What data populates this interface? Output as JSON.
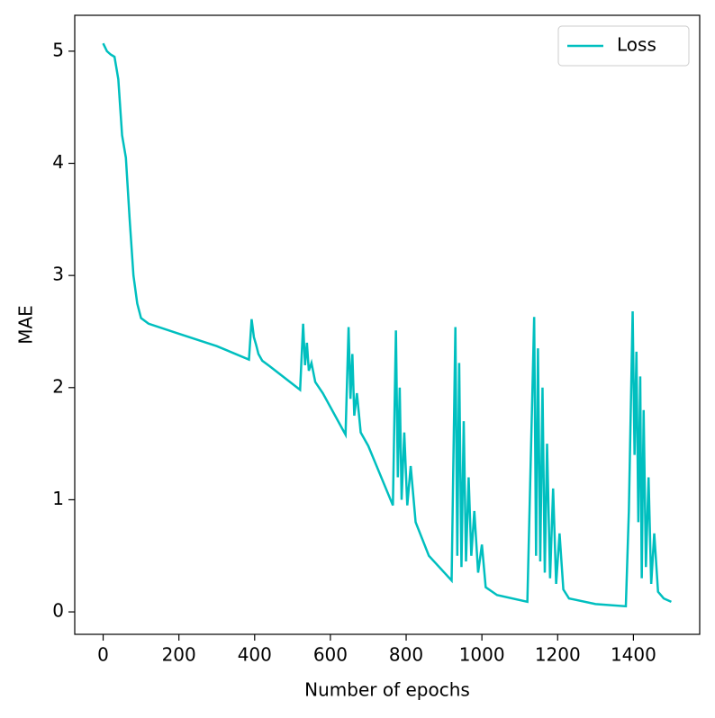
{
  "chart_data": {
    "type": "line",
    "x_label": "Number of epochs",
    "y_label": "MAE",
    "x": [
      0,
      10,
      20,
      30,
      40,
      50,
      60,
      70,
      80,
      90,
      100,
      120,
      200,
      300,
      385,
      392,
      398,
      404,
      410,
      420,
      440,
      520,
      528,
      533,
      538,
      543,
      550,
      560,
      580,
      640,
      648,
      653,
      658,
      663,
      670,
      680,
      700,
      765,
      773,
      778,
      783,
      788,
      795,
      803,
      812,
      825,
      860,
      920,
      930,
      935,
      940,
      946,
      952,
      958,
      965,
      972,
      980,
      990,
      1000,
      1010,
      1040,
      1120,
      1138,
      1143,
      1148,
      1154,
      1160,
      1166,
      1172,
      1180,
      1188,
      1196,
      1205,
      1215,
      1230,
      1300,
      1380,
      1388,
      1398,
      1403,
      1408,
      1413,
      1418,
      1422,
      1427,
      1433,
      1440,
      1447,
      1455,
      1465,
      1480,
      1500
    ],
    "series": [
      {
        "name": "Loss",
        "color": "#00bfbf",
        "values": [
          5.07,
          5.0,
          4.97,
          4.95,
          4.75,
          4.25,
          4.05,
          3.5,
          3.0,
          2.75,
          2.62,
          2.57,
          2.48,
          2.37,
          2.25,
          2.61,
          2.45,
          2.38,
          2.3,
          2.24,
          2.19,
          1.98,
          2.57,
          2.2,
          2.4,
          2.15,
          2.22,
          2.05,
          1.95,
          1.58,
          2.54,
          1.9,
          2.3,
          1.75,
          1.95,
          1.6,
          1.48,
          0.95,
          2.51,
          1.2,
          2.0,
          1.0,
          1.6,
          0.95,
          1.3,
          0.8,
          0.5,
          0.28,
          2.54,
          0.5,
          2.22,
          0.4,
          1.7,
          0.45,
          1.2,
          0.5,
          0.9,
          0.35,
          0.6,
          0.22,
          0.15,
          0.09,
          2.63,
          0.5,
          2.35,
          0.45,
          2.0,
          0.35,
          1.5,
          0.3,
          1.1,
          0.25,
          0.7,
          0.2,
          0.12,
          0.07,
          0.05,
          0.9,
          2.68,
          1.4,
          2.32,
          0.8,
          2.1,
          0.3,
          1.8,
          0.4,
          1.2,
          0.25,
          0.7,
          0.18,
          0.12,
          0.09
        ]
      }
    ],
    "xlim": [
      -75,
      1575
    ],
    "ylim": [
      -0.2,
      5.32
    ],
    "xticks": [
      0,
      200,
      400,
      600,
      800,
      1000,
      1200,
      1400
    ],
    "yticks": [
      0,
      1,
      2,
      3,
      4,
      5
    ],
    "legend": "upper right"
  }
}
